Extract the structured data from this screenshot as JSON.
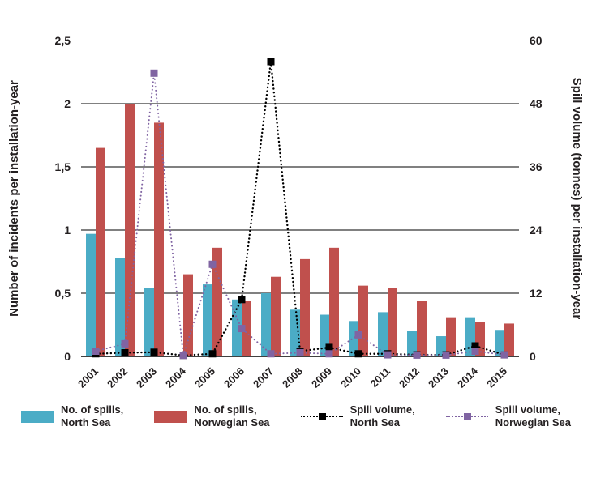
{
  "chart_data": {
    "type": "bar+line",
    "categories": [
      "2001",
      "2002",
      "2003",
      "2004",
      "2005",
      "2006",
      "2007",
      "2008",
      "2009",
      "2010",
      "2011",
      "2012",
      "2013",
      "2014",
      "2015"
    ],
    "left_axis": {
      "label": "Number of incidents per installation-year",
      "min": 0,
      "max": 2.5,
      "ticks": [
        {
          "value": 0,
          "label": "0"
        },
        {
          "value": 0.5,
          "label": "0,5"
        },
        {
          "value": 1,
          "label": "1"
        },
        {
          "value": 1.5,
          "label": "1,5"
        },
        {
          "value": 2,
          "label": "2"
        },
        {
          "value": 2.5,
          "label": "2,5"
        }
      ],
      "grid_values": [
        0.5,
        1,
        1.5,
        2
      ]
    },
    "right_axis": {
      "label": "Spill volume (tonnes) per installation-year",
      "min": 0,
      "max": 60,
      "ticks": [
        {
          "value": 0,
          "label": "0"
        },
        {
          "value": 12,
          "label": "12"
        },
        {
          "value": 24,
          "label": "24"
        },
        {
          "value": 36,
          "label": "36"
        },
        {
          "value": 48,
          "label": "48"
        },
        {
          "value": 60,
          "label": "60"
        }
      ]
    },
    "bar_series": [
      {
        "name": "No. of spills, North Sea",
        "color": "#4BACC6",
        "axis": "left",
        "values": [
          0.97,
          0.78,
          0.54,
          0,
          0.57,
          0.45,
          0.5,
          0.37,
          0.33,
          0.28,
          0.35,
          0.2,
          0.16,
          0.31,
          0.21
        ]
      },
      {
        "name": "No. of spills, Norwegian Sea",
        "color": "#C0504D",
        "axis": "left",
        "values": [
          1.65,
          2.0,
          1.85,
          0.65,
          0.86,
          0.44,
          0.63,
          0.77,
          0.86,
          0.56,
          0.54,
          0.44,
          0.31,
          0.27,
          0.26
        ]
      }
    ],
    "line_series": [
      {
        "name": "Spill volume, North Sea",
        "color": "#000000",
        "axis": "right",
        "values": [
          0.5,
          0.7,
          0.8,
          0.2,
          0.5,
          10.8,
          56,
          1.0,
          1.7,
          0.5,
          0.5,
          0.3,
          0.3,
          2.0,
          0.3
        ]
      },
      {
        "name": "Spill volume, Norwegian Sea",
        "color": "#8064A2",
        "axis": "right",
        "values": [
          1.0,
          2.4,
          53.8,
          0.2,
          17.5,
          5.3,
          0.5,
          0.7,
          0.5,
          4.1,
          0.3,
          0.25,
          0.25,
          1.0,
          0.3
        ]
      }
    ],
    "legend": [
      {
        "swatch": "bar",
        "color": "#4BACC6",
        "line1": "No. of spills,",
        "line2": "North Sea"
      },
      {
        "swatch": "bar",
        "color": "#C0504D",
        "line1": "No. of spills,",
        "line2": "Norwegian Sea"
      },
      {
        "swatch": "dotted-line",
        "color": "#000000",
        "line1": "Spill volume,",
        "line2": "North Sea"
      },
      {
        "swatch": "dotted-line",
        "color": "#8064A2",
        "line1": "Spill volume,",
        "line2": "Norwegian Sea"
      }
    ],
    "grid": "horizontal solid black",
    "legend_position": "bottom"
  }
}
